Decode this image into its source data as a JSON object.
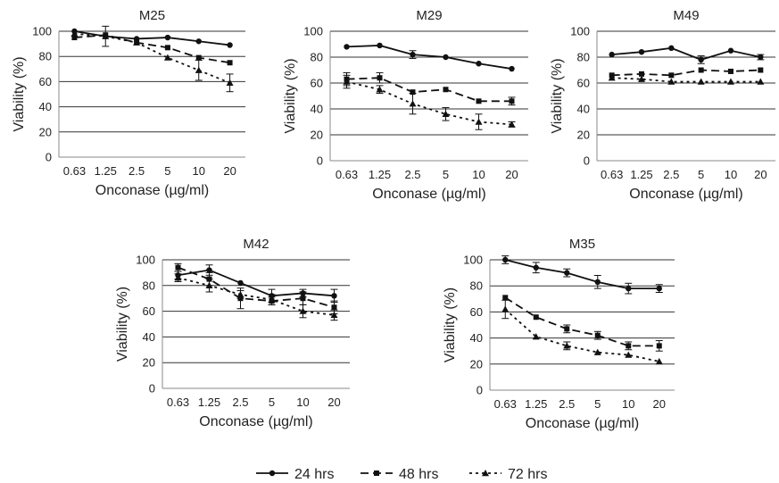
{
  "chart_data": [
    {
      "type": "line",
      "title": "M25",
      "xlabel": "Onconase (µg/ml)",
      "ylabel": "Viability (%)",
      "categories": [
        "0.63",
        "1.25",
        "2.5",
        "5",
        "10",
        "20"
      ],
      "ylim": [
        0,
        100
      ],
      "yticks": [
        0,
        20,
        40,
        60,
        80,
        100
      ],
      "grid": "horizontal",
      "series": [
        {
          "name": "24 hrs",
          "values": [
            100,
            96,
            94,
            95,
            92,
            89
          ],
          "errors": [
            0,
            0,
            0,
            0,
            0,
            0
          ]
        },
        {
          "name": "48 hrs",
          "values": [
            95,
            97,
            91,
            87,
            79,
            75
          ],
          "errors": [
            0,
            0,
            0,
            0,
            0,
            0
          ]
        },
        {
          "name": "72 hrs",
          "values": [
            98,
            96,
            91,
            79,
            69,
            59
          ],
          "errors": [
            0,
            8,
            0,
            0,
            8,
            7
          ]
        }
      ]
    },
    {
      "type": "line",
      "title": "M29",
      "xlabel": "Onconase (µg/ml)",
      "ylabel": "Viability (%)",
      "categories": [
        "0.63",
        "1.25",
        "2.5",
        "5",
        "10",
        "20"
      ],
      "ylim": [
        0,
        100
      ],
      "yticks": [
        0,
        20,
        40,
        60,
        80,
        100
      ],
      "grid": "horizontal",
      "series": [
        {
          "name": "24 hrs",
          "values": [
            88,
            89,
            82,
            80,
            75,
            71
          ],
          "errors": [
            0,
            0,
            3,
            0,
            0,
            0
          ]
        },
        {
          "name": "48 hrs",
          "values": [
            63,
            64,
            53,
            55,
            46,
            46
          ],
          "errors": [
            5,
            4,
            0,
            0,
            0,
            3
          ]
        },
        {
          "name": "72 hrs",
          "values": [
            61,
            55,
            44,
            36,
            30,
            28
          ],
          "errors": [
            5,
            3,
            8,
            5,
            6,
            2
          ]
        }
      ]
    },
    {
      "type": "line",
      "title": "M49",
      "xlabel": "Onconase (µg/ml)",
      "ylabel": "Viability (%)",
      "categories": [
        "0.63",
        "1.25",
        "2.5",
        "5",
        "10",
        "20"
      ],
      "ylim": [
        0,
        100
      ],
      "yticks": [
        0,
        20,
        40,
        60,
        80,
        100
      ],
      "grid": "horizontal",
      "series": [
        {
          "name": "24 hrs",
          "values": [
            82,
            84,
            87,
            78,
            85,
            80
          ],
          "errors": [
            0,
            0,
            0,
            3,
            0,
            2
          ]
        },
        {
          "name": "48 hrs",
          "values": [
            66,
            67,
            66,
            70,
            69,
            70
          ],
          "errors": [
            0,
            0,
            0,
            0,
            0,
            0
          ]
        },
        {
          "name": "72 hrs",
          "values": [
            64,
            63,
            61,
            61,
            61,
            61
          ],
          "errors": [
            0,
            0,
            0,
            0,
            0,
            0
          ]
        }
      ]
    },
    {
      "type": "line",
      "title": "M42",
      "xlabel": "Onconase (µg/ml)",
      "ylabel": "Viability (%)",
      "categories": [
        "0.63",
        "1.25",
        "2.5",
        "5",
        "10",
        "20"
      ],
      "ylim": [
        0,
        100
      ],
      "yticks": [
        0,
        20,
        40,
        60,
        80,
        100
      ],
      "grid": "horizontal",
      "series": [
        {
          "name": "24 hrs",
          "values": [
            88,
            92,
            82,
            72,
            74,
            72
          ],
          "errors": [
            3,
            4,
            0,
            5,
            3,
            5
          ]
        },
        {
          "name": "48 hrs",
          "values": [
            94,
            85,
            70,
            68,
            70,
            63
          ],
          "errors": [
            3,
            5,
            8,
            3,
            5,
            5
          ]
        },
        {
          "name": "72 hrs",
          "values": [
            86,
            80,
            73,
            69,
            60,
            57
          ],
          "errors": [
            3,
            5,
            3,
            4,
            5,
            4
          ]
        }
      ]
    },
    {
      "type": "line",
      "title": "M35",
      "xlabel": "Onconase (µg/ml)",
      "ylabel": "Viability (%)",
      "categories": [
        "0.63",
        "1.25",
        "2.5",
        "5",
        "10",
        "20"
      ],
      "ylim": [
        0,
        100
      ],
      "yticks": [
        0,
        20,
        40,
        60,
        80,
        100
      ],
      "grid": "horizontal",
      "series": [
        {
          "name": "24 hrs",
          "values": [
            100,
            94,
            90,
            83,
            78,
            78
          ],
          "errors": [
            3,
            4,
            3,
            5,
            4,
            3
          ]
        },
        {
          "name": "48 hrs",
          "values": [
            71,
            56,
            47,
            42,
            34,
            34
          ],
          "errors": [
            0,
            0,
            3,
            3,
            3,
            4
          ]
        },
        {
          "name": "72 hrs",
          "values": [
            62,
            41,
            34,
            29,
            27,
            22
          ],
          "errors": [
            7,
            0,
            3,
            0,
            0,
            0
          ]
        }
      ]
    }
  ],
  "legend": {
    "position": "bottom",
    "entries": [
      {
        "label": "24 hrs",
        "style": "solid",
        "marker": "circle"
      },
      {
        "label": "48 hrs",
        "style": "dashed",
        "marker": "square"
      },
      {
        "label": "72 hrs",
        "style": "dotted",
        "marker": "triangle"
      }
    ]
  },
  "colors": {
    "line": "#111111",
    "grid": "#333333",
    "axis": "#888888",
    "text": "#222222",
    "background": "#ffffff"
  }
}
